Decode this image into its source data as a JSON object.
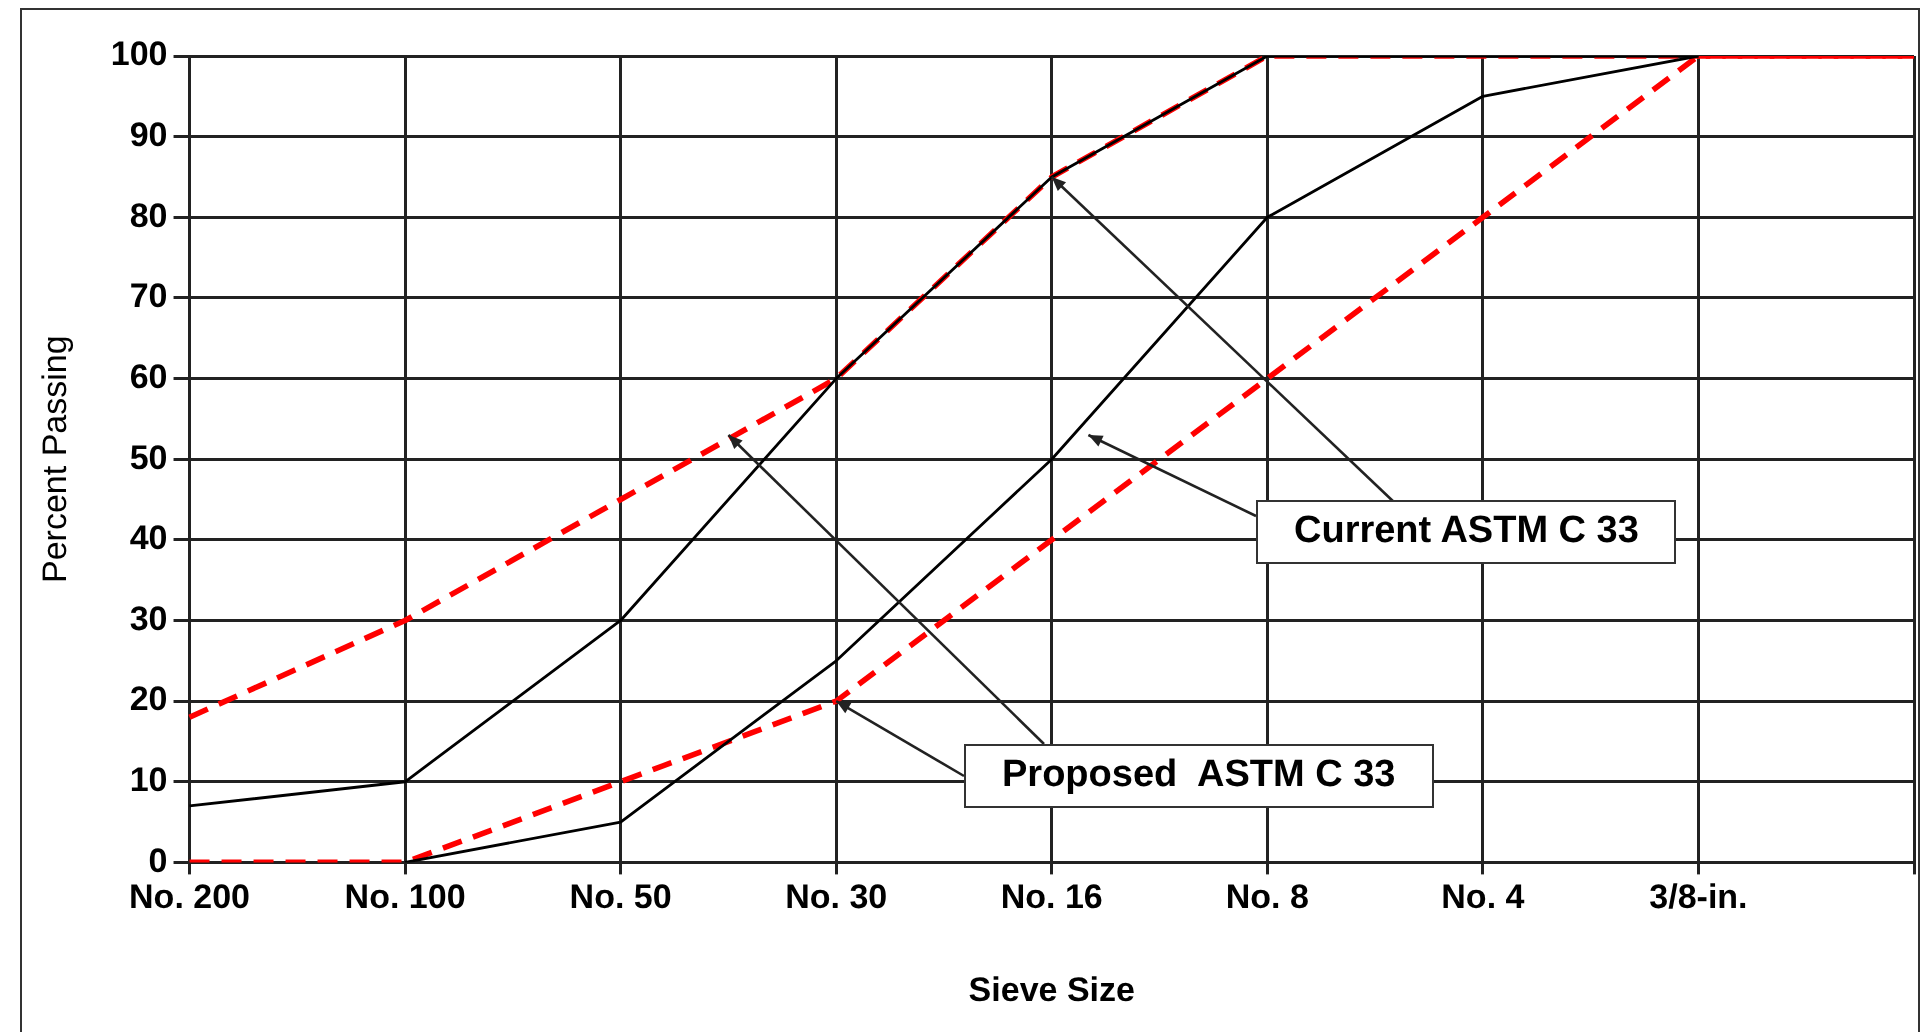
{
  "chart_data": {
    "type": "line",
    "xlabel": "Sieve Size",
    "ylabel": "Percent Passing",
    "categories": [
      "No. 200",
      "No. 100",
      "No. 50",
      "No. 30",
      "No. 16",
      "No. 8",
      "No. 4",
      "3/8-in.",
      null
    ],
    "series": [
      {
        "color": "#000000",
        "line_style": "solid",
        "values": [
          7,
          10,
          30,
          60,
          85,
          100,
          100,
          100,
          null
        ]
      },
      {
        "color": "#000000",
        "line_style": "solid",
        "values": [
          null,
          0,
          5,
          25,
          50,
          80,
          95,
          100,
          null
        ]
      },
      {
        "color": "#ff0000",
        "line_style": "dashed",
        "values": [
          18,
          30,
          45,
          60,
          85,
          100,
          100,
          100,
          100
        ]
      },
      {
        "color": "#ff0000",
        "line_style": "dashed",
        "values": [
          0,
          0,
          10,
          20,
          40,
          60,
          80,
          100,
          100
        ]
      }
    ],
    "ylim": [
      0,
      100
    ],
    "yticks": [
      0,
      10,
      20,
      30,
      40,
      50,
      60,
      70,
      80,
      90,
      100
    ],
    "grid": true,
    "legend": false,
    "marker": "none",
    "annotations": [
      {
        "text": "Current ASTM C 33",
        "x": "No. 16",
        "y": 85
      },
      {
        "text": "Proposed  ASTM C 33",
        "x": "No. 30",
        "y": 20
      }
    ]
  }
}
